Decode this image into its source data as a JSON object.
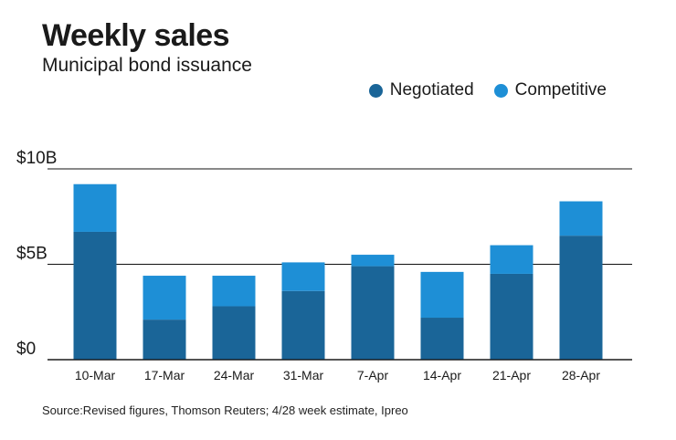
{
  "header": {
    "title": "Weekly sales",
    "subtitle": "Municipal bond issuance"
  },
  "legend": [
    {
      "label": "Negotiated",
      "color": "#1a6598"
    },
    {
      "label": "Competitive",
      "color": "#1e8fd6"
    }
  ],
  "chart_data": {
    "type": "bar",
    "stacked": true,
    "categories": [
      "10-Mar",
      "17-Mar",
      "24-Mar",
      "31-Mar",
      "7-Apr",
      "14-Apr",
      "21-Apr",
      "28-Apr"
    ],
    "series": [
      {
        "name": "Negotiated",
        "color": "#1a6598",
        "values": [
          6.7,
          2.1,
          2.8,
          3.6,
          4.9,
          2.2,
          4.5,
          6.5
        ]
      },
      {
        "name": "Competitive",
        "color": "#1e8fd6",
        "values": [
          2.5,
          2.3,
          1.6,
          1.5,
          0.6,
          2.4,
          1.5,
          1.8
        ]
      }
    ],
    "yticks": [
      {
        "value": 0,
        "label": "$0"
      },
      {
        "value": 5,
        "label": "$5B"
      },
      {
        "value": 10,
        "label": "$10B"
      }
    ],
    "ylim": [
      0,
      10
    ],
    "title": "Weekly sales",
    "xlabel": "",
    "ylabel": ""
  },
  "footer": {
    "source": "Source:Revised figures, Thomson Reuters; 4/28 week estimate, Ipreo"
  }
}
